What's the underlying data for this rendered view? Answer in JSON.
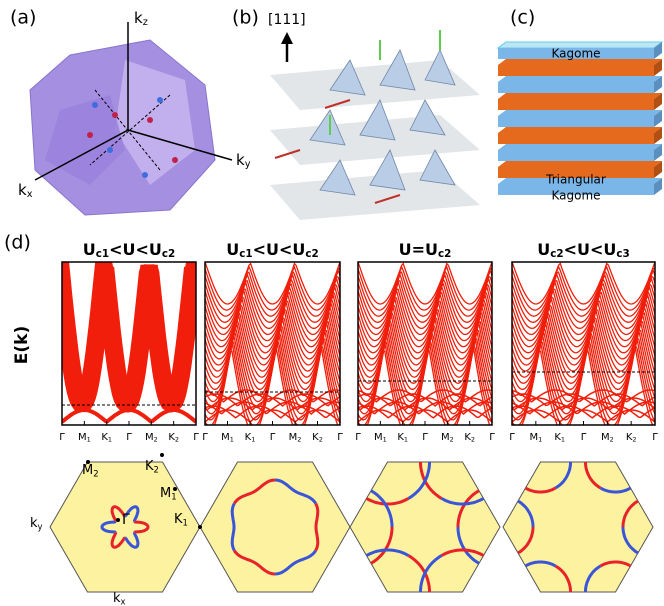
{
  "panel_a": {
    "label": "(a)",
    "kz": [
      "k",
      "z"
    ],
    "ky": [
      "k",
      "y"
    ],
    "kx": [
      "k",
      "x"
    ]
  },
  "panel_b": {
    "label": "(b)",
    "direction": "[111]"
  },
  "panel_c": {
    "label": "(c)",
    "top_layer": "Kagome",
    "lower_layer": "Triangular",
    "bottom_layer": "Kagome"
  },
  "panel_d": {
    "label": "(d)",
    "ylabel": "E(k)",
    "titles": [
      [
        "U",
        "c1",
        "<U<U",
        "c2"
      ],
      [
        "U",
        "c1",
        "<U<U",
        "c2"
      ],
      [
        "U=U",
        "c2"
      ],
      [
        "U",
        "c2",
        "<U<U",
        "c3"
      ]
    ],
    "kpath": [
      [
        "Γ"
      ],
      [
        "M",
        "1"
      ],
      [
        "K",
        "1"
      ],
      [
        "Γ"
      ],
      [
        "M",
        "2"
      ],
      [
        "K",
        "2"
      ],
      [
        "Γ"
      ]
    ],
    "fermi_labels": {
      "M2": [
        "M",
        "2"
      ],
      "K2": [
        "K",
        "2"
      ],
      "M1": [
        "M",
        "1"
      ],
      "K1": [
        "K",
        "1"
      ],
      "gamma": "Γ",
      "ky": [
        "k",
        "y"
      ],
      "kx": [
        "k",
        "x"
      ]
    }
  }
}
